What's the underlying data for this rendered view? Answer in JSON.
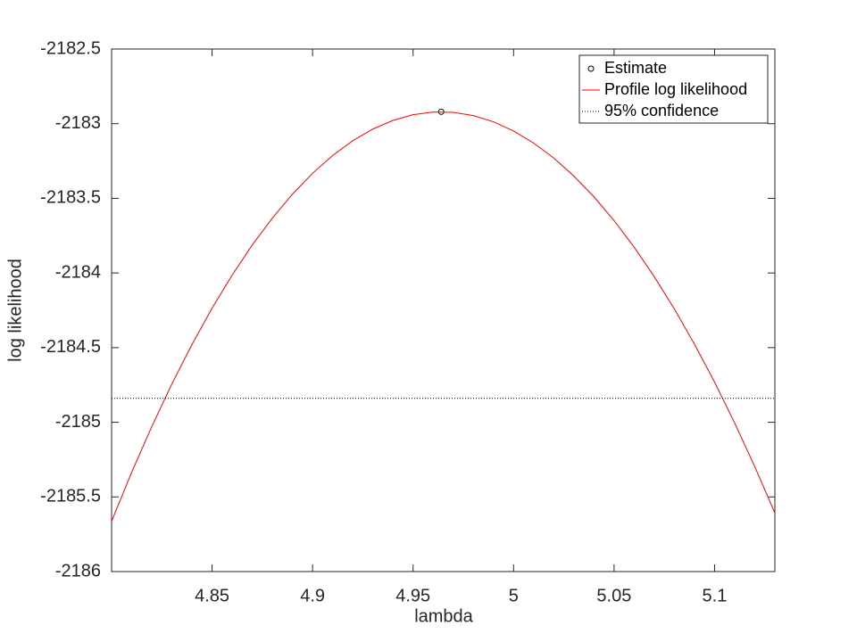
{
  "chart_data": {
    "type": "line",
    "xlabel": "lambda",
    "ylabel": "log likelihood",
    "xlim": [
      4.8,
      5.13
    ],
    "ylim": [
      -2186,
      -2182.5
    ],
    "xticks": [
      4.85,
      4.9,
      4.95,
      5,
      5.05,
      5.1
    ],
    "yticks": [
      -2186,
      -2185.5,
      -2185,
      -2184.5,
      -2184,
      -2183.5,
      -2183,
      -2182.5
    ],
    "legend": "upper right",
    "series": [
      {
        "name": "Estimate",
        "color": "#000000",
        "style": "marker",
        "x": [
          4.964
        ],
        "values": [
          -2182.92
        ]
      },
      {
        "name": "Profile log likelihood",
        "color": "#ff0000",
        "style": "solid",
        "x": [
          4.8,
          4.81,
          4.82,
          4.83,
          4.84,
          4.85,
          4.86,
          4.87,
          4.88,
          4.89,
          4.9,
          4.91,
          4.92,
          4.93,
          4.94,
          4.95,
          4.96,
          4.97,
          4.98,
          4.99,
          5.0,
          5.01,
          5.02,
          5.03,
          5.04,
          5.05,
          5.06,
          5.07,
          5.08,
          5.09,
          5.1,
          5.11,
          5.12,
          5.13
        ],
        "values": [
          -2185.663,
          -2185.335,
          -2185.029,
          -2184.743,
          -2184.479,
          -2184.236,
          -2184.014,
          -2183.812,
          -2183.632,
          -2183.472,
          -2183.332,
          -2183.213,
          -2183.114,
          -2183.036,
          -2182.978,
          -2182.94,
          -2182.922,
          -2182.924,
          -2182.946,
          -2182.987,
          -2183.049,
          -2183.13,
          -2183.23,
          -2183.351,
          -2183.49,
          -2183.649,
          -2183.827,
          -2184.025,
          -2184.241,
          -2184.477,
          -2184.731,
          -2185.005,
          -2185.297,
          -2185.608
        ]
      },
      {
        "name": "95% confidence",
        "color": "#000000",
        "style": "dotted",
        "x": [
          4.8,
          5.13
        ],
        "values": [
          -2184.84,
          -2184.84
        ]
      }
    ]
  }
}
